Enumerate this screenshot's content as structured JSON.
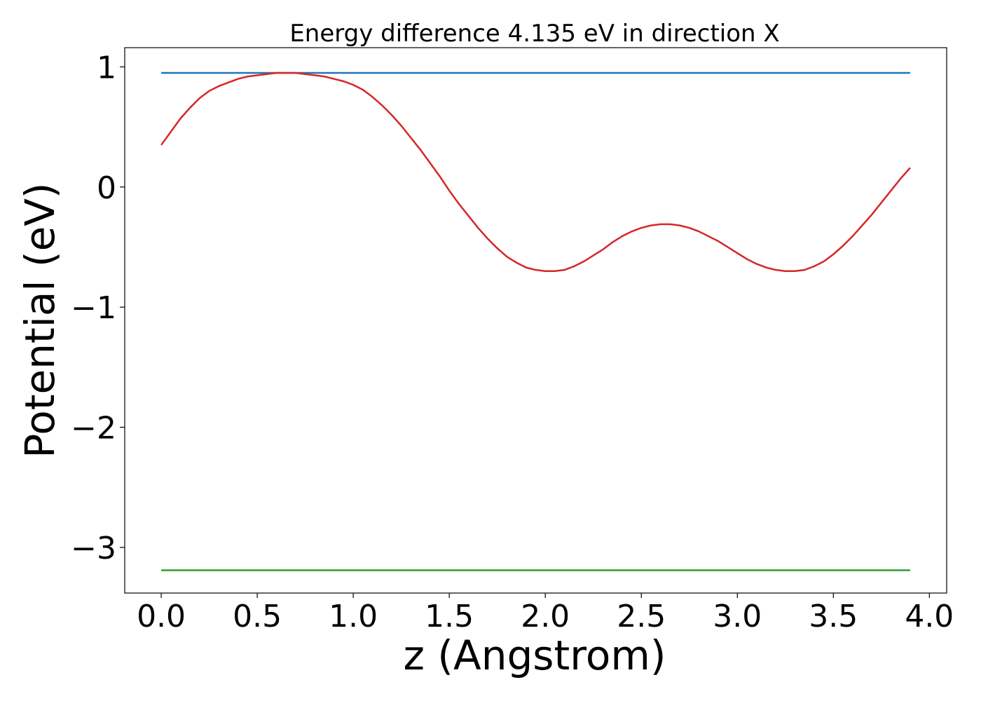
{
  "chart_data": {
    "type": "line",
    "title": "Energy difference 4.135 eV in direction X",
    "xlabel": "z (Angstrom)",
    "ylabel": "Potential (eV)",
    "xlim": [
      -0.19,
      4.09
    ],
    "ylim": [
      -3.38,
      1.16
    ],
    "xticks": [
      0.0,
      0.5,
      1.0,
      1.5,
      2.0,
      2.5,
      3.0,
      3.5,
      4.0
    ],
    "xtick_labels": [
      "0.0",
      "0.5",
      "1.0",
      "1.5",
      "2.0",
      "2.5",
      "3.0",
      "3.5",
      "4.0"
    ],
    "yticks": [
      1,
      0,
      -1,
      -2,
      -3
    ],
    "ytick_labels": [
      "1",
      "0",
      "−1",
      "−2",
      "−3"
    ],
    "grid": false,
    "series": [
      {
        "color": "#1f77b4",
        "x": [
          0.0,
          3.9
        ],
        "y": [
          0.95,
          0.95
        ]
      },
      {
        "color": "#2ca02c",
        "x": [
          0.0,
          3.9
        ],
        "y": [
          -3.19,
          -3.19
        ]
      },
      {
        "color": "#d62728",
        "x": [
          0.0,
          0.05,
          0.1,
          0.15,
          0.2,
          0.25,
          0.3,
          0.35,
          0.4,
          0.45,
          0.5,
          0.55,
          0.6,
          0.65,
          0.7,
          0.75,
          0.8,
          0.85,
          0.9,
          0.95,
          1.0,
          1.05,
          1.1,
          1.15,
          1.2,
          1.25,
          1.3,
          1.35,
          1.4,
          1.45,
          1.5,
          1.55,
          1.6,
          1.65,
          1.7,
          1.75,
          1.8,
          1.85,
          1.9,
          1.95,
          2.0,
          2.05,
          2.1,
          2.15,
          2.2,
          2.25,
          2.3,
          2.35,
          2.4,
          2.45,
          2.5,
          2.55,
          2.6,
          2.65,
          2.7,
          2.75,
          2.8,
          2.85,
          2.9,
          2.95,
          3.0,
          3.05,
          3.1,
          3.15,
          3.2,
          3.25,
          3.3,
          3.35,
          3.4,
          3.45,
          3.5,
          3.55,
          3.6,
          3.65,
          3.7,
          3.75,
          3.8,
          3.85,
          3.9
        ],
        "y": [
          0.35,
          0.46,
          0.57,
          0.66,
          0.74,
          0.8,
          0.84,
          0.87,
          0.9,
          0.92,
          0.93,
          0.94,
          0.95,
          0.95,
          0.95,
          0.94,
          0.93,
          0.92,
          0.9,
          0.88,
          0.85,
          0.81,
          0.75,
          0.68,
          0.6,
          0.51,
          0.41,
          0.31,
          0.2,
          0.09,
          -0.03,
          -0.14,
          -0.24,
          -0.34,
          -0.43,
          -0.51,
          -0.58,
          -0.63,
          -0.67,
          -0.69,
          -0.7,
          -0.7,
          -0.69,
          -0.66,
          -0.62,
          -0.57,
          -0.52,
          -0.46,
          -0.41,
          -0.37,
          -0.34,
          -0.32,
          -0.31,
          -0.31,
          -0.32,
          -0.34,
          -0.37,
          -0.41,
          -0.45,
          -0.5,
          -0.55,
          -0.6,
          -0.64,
          -0.67,
          -0.69,
          -0.7,
          -0.7,
          -0.69,
          -0.66,
          -0.62,
          -0.56,
          -0.49,
          -0.41,
          -0.32,
          -0.23,
          -0.13,
          -0.03,
          0.07,
          0.16
        ]
      }
    ]
  }
}
